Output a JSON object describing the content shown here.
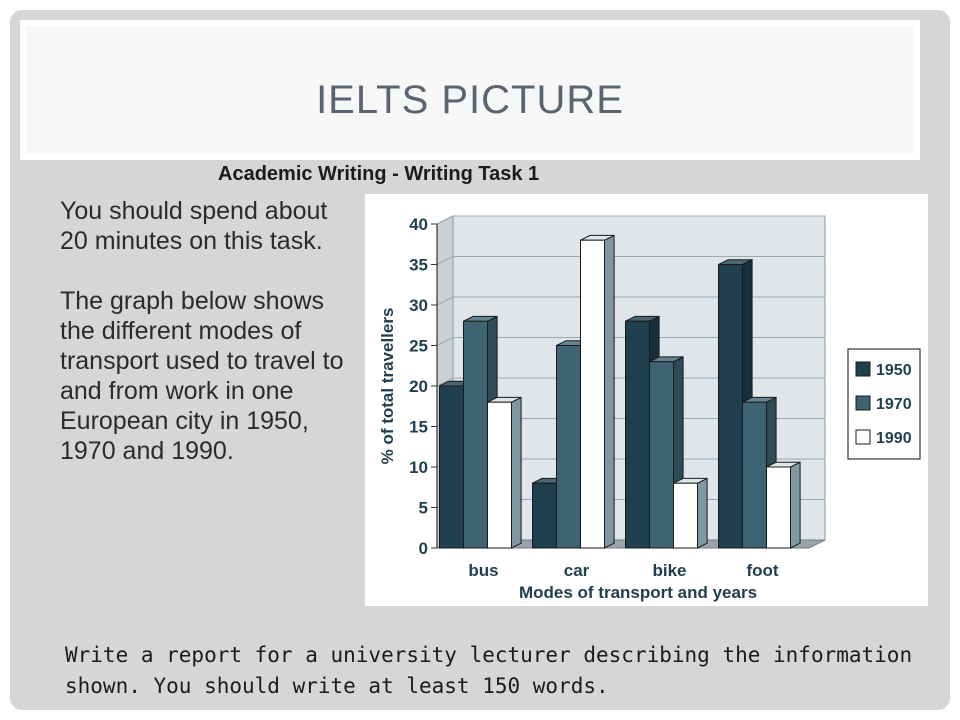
{
  "slide": {
    "title": "IELTS PICTURE",
    "subtitle": "Academic Writing - Writing Task 1",
    "intro_p1": "You should spend about 20 minutes on this task.",
    "intro_p2": "The graph below shows the different modes of transport used to travel to and from work in one European city in 1950, 1970 and 1990.",
    "instruction_line1": "Write a report for a university lecturer describing the information",
    "instruction_line2": "shown. You should write at least 150 words."
  },
  "chart_data": {
    "type": "bar",
    "categories": [
      "bus",
      "car",
      "bike",
      "foot"
    ],
    "series": [
      {
        "name": "1950",
        "values": [
          20,
          8,
          28,
          35
        ],
        "color": "#1f3f4f"
      },
      {
        "name": "1970",
        "values": [
          28,
          25,
          23,
          18
        ],
        "color": "#3e6474"
      },
      {
        "name": "1990",
        "values": [
          18,
          38,
          8,
          10
        ],
        "color": "#ffffff"
      }
    ],
    "yticks": [
      0,
      5,
      10,
      15,
      20,
      25,
      30,
      35,
      40
    ],
    "ylim": [
      0,
      40
    ],
    "xlabel": "Modes of transport and years",
    "ylabel": "% of total travellers",
    "legend_position": "right",
    "grid": true
  }
}
